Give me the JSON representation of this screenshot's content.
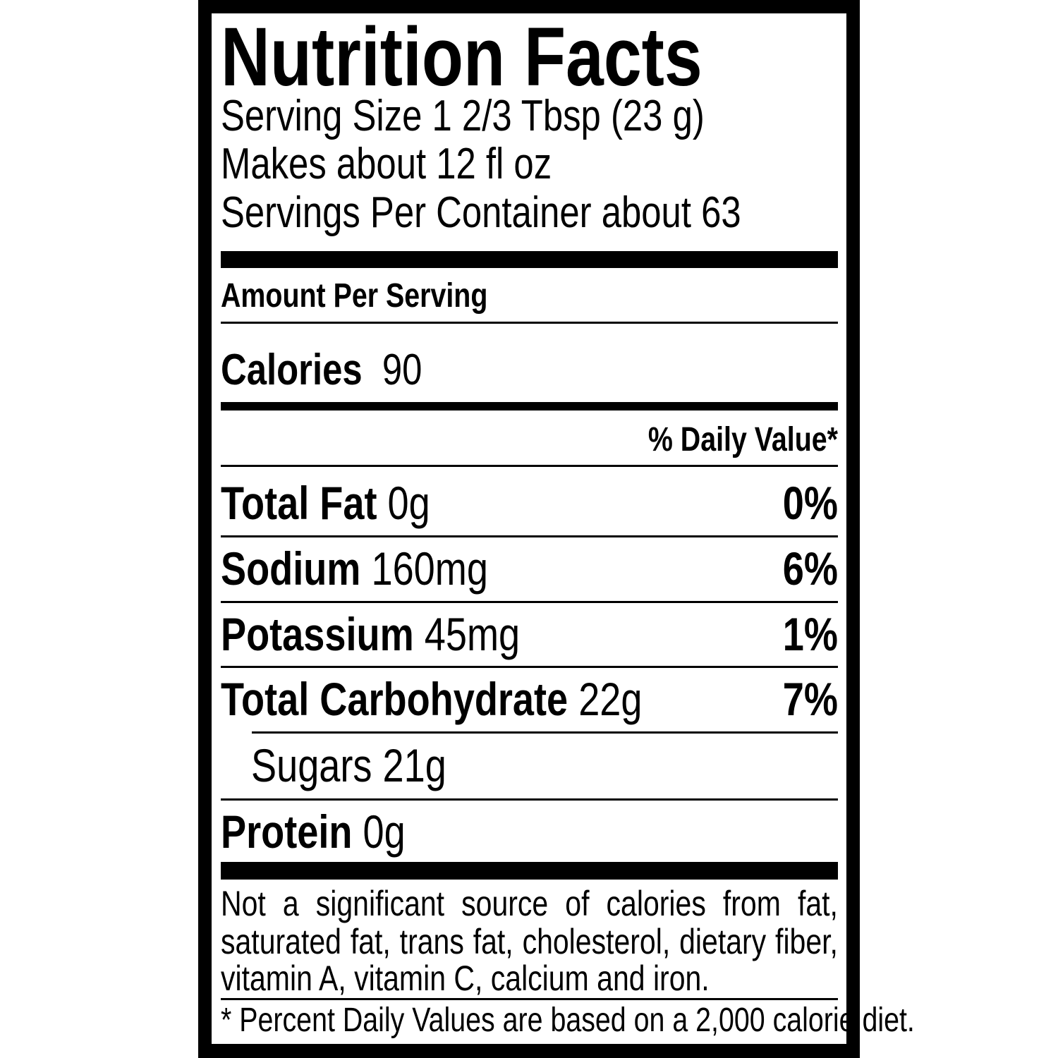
{
  "title": "Nutrition Facts",
  "serving": {
    "serving_size": "Serving Size 1 2/3 Tbsp (23 g)",
    "makes": "Makes about 12 fl oz",
    "servings_per_container": "Servings Per Container about 63"
  },
  "amount_per_serving": "Amount Per Serving",
  "calories": {
    "label": "Calories",
    "value": "90"
  },
  "daily_value_header": "% Daily Value*",
  "nutrients": [
    {
      "label": "Total Fat",
      "amount": "0g",
      "dv": "0%"
    },
    {
      "label": "Sodium",
      "amount": "160mg",
      "dv": "6%"
    },
    {
      "label": "Potassium",
      "amount": "45mg",
      "dv": "1%"
    },
    {
      "label": "Total Carbohydrate",
      "amount": "22g",
      "dv": "7%"
    },
    {
      "label": "Sugars",
      "amount": "21g",
      "dv": ""
    },
    {
      "label": "Protein",
      "amount": "0g",
      "dv": ""
    }
  ],
  "footnote": {
    "lines": [
      "Not a significant source of calories from fat,",
      "saturated fat, trans fat, cholesterol, dietary fiber,",
      "vitamin A, vitamin C, calcium and iron."
    ],
    "daily_values_note": "* Percent Daily Values are based on a 2,000 calorie diet."
  }
}
